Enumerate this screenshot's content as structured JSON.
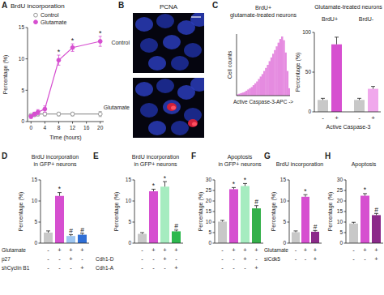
{
  "chart_data": [
    {
      "type": "line",
      "panel": "A",
      "title": "BrdU incorporation",
      "x_label": "Time (hours)",
      "y_label": "Percentage (%)",
      "x": [
        0,
        1,
        2,
        4,
        8,
        12,
        20
      ],
      "xlim": [
        -1,
        21
      ],
      "xticks": [
        0,
        4,
        8,
        12,
        16,
        20
      ],
      "ylim": [
        0,
        15
      ],
      "yticks": [
        0,
        5,
        10,
        15
      ],
      "legend": "upper left",
      "series": [
        {
          "name": "Control",
          "color": "#9a9a9a",
          "marker": "open-circle",
          "values": [
            1.0,
            1.1,
            1.2,
            1.2,
            1.2,
            1.2,
            1.2
          ],
          "errors": [
            0.2,
            0.3,
            0.3,
            0.3,
            0.3,
            0.3,
            0.4
          ]
        },
        {
          "name": "Glutamate",
          "color": "#d64fd0",
          "marker": "circle",
          "values": [
            0.8,
            1.2,
            1.5,
            2.0,
            9.8,
            11.8,
            12.8
          ],
          "errors": [
            0.3,
            0.3,
            0.4,
            0.5,
            0.8,
            0.6,
            0.8
          ],
          "annotations": [
            null,
            null,
            null,
            null,
            "*",
            "*",
            "*"
          ]
        }
      ]
    },
    {
      "type": "image",
      "panel": "B",
      "title": "PCNA",
      "labels": [
        "Control",
        "Glutamate"
      ]
    },
    {
      "type": "histogram",
      "panel": "C",
      "title": [
        "BrdU+",
        "glutamate-treated neurons"
      ],
      "x_label": "Active Caspase-3-APC ->",
      "y_label": "Cell counts",
      "bins": [
        0,
        1,
        2,
        3,
        4,
        5,
        6,
        7,
        8,
        9,
        10,
        11,
        12,
        13,
        14,
        15,
        16,
        17,
        18,
        19,
        20,
        21,
        22,
        23,
        24,
        25,
        26,
        27,
        28,
        29,
        30
      ],
      "counts": [
        2,
        3,
        4,
        5,
        6,
        8,
        10,
        12,
        14,
        17,
        20,
        23,
        27,
        31,
        35,
        40,
        45,
        50,
        56,
        62,
        68,
        74,
        80,
        86,
        92,
        96,
        90,
        70,
        40,
        12
      ],
      "xlim": [
        0,
        30
      ],
      "ylim": [
        0,
        100
      ],
      "tick_labels": false,
      "color": "#e58be0"
    },
    {
      "type": "bar",
      "title": "Glutamate-treated neurons",
      "x_label": "Active Caspase-3",
      "y_label": "Percentage (%)",
      "categories": [
        "-",
        "+"
      ],
      "ylim": [
        0,
        100
      ],
      "yticks": [
        0,
        50,
        100
      ],
      "series": [
        {
          "name": "BrdU+",
          "colors": [
            "#c8c8c8",
            "#d64fd0"
          ],
          "values": [
            15,
            85
          ],
          "errors": [
            2,
            9
          ]
        },
        {
          "name": "BrdU-",
          "colors": [
            "#c8c8c8",
            "#f0a8ec"
          ],
          "values": [
            15,
            29
          ],
          "errors": [
            2,
            3
          ]
        }
      ]
    },
    {
      "type": "bar",
      "panel": "D",
      "title": [
        "BrdU incorporation",
        "in GFP+ neurons"
      ],
      "y_label": "Percentage (%)",
      "ylim": [
        0,
        15
      ],
      "yticks": [
        0,
        5,
        10,
        15
      ],
      "values": [
        2.5,
        11.2,
        1.7,
        2.0
      ],
      "errors": [
        0.4,
        0.8,
        0.3,
        0.3
      ],
      "colors": [
        "#c8c8c8",
        "#d64fd0",
        "#9ec6f0",
        "#2f6fd6"
      ],
      "annotations": [
        null,
        "*",
        "#",
        "#"
      ],
      "conditions": [
        {
          "label": "Glutamate",
          "values": [
            "-",
            "+",
            "+",
            "+"
          ]
        },
        {
          "label": "p27",
          "values": [
            "-",
            "-",
            "+",
            "-"
          ]
        },
        {
          "label": "shCyclin B1",
          "values": [
            "-",
            "-",
            "-",
            "+"
          ]
        }
      ]
    },
    {
      "type": "bar",
      "panel": "E",
      "title": [
        "BrdU incorporation",
        "in GFP+ neurons"
      ],
      "y_label": "Percentage (%)",
      "ylim": [
        0,
        15
      ],
      "yticks": [
        0,
        5,
        10,
        15
      ],
      "values": [
        2.2,
        12.3,
        13.4,
        2.8
      ],
      "errors": [
        0.3,
        0.5,
        1.2,
        0.3
      ],
      "colors": [
        "#c8c8c8",
        "#d64fd0",
        "#a6ecc0",
        "#2db84e"
      ],
      "annotations": [
        null,
        "*",
        "*",
        "#"
      ],
      "conditions": [
        {
          "label": null,
          "values": [
            "-",
            "+",
            "+",
            "+"
          ]
        },
        {
          "label": "Cdh1-D",
          "values": [
            "-",
            "-",
            "+",
            "-"
          ]
        },
        {
          "label": "Cdh1-A",
          "values": [
            "-",
            "-",
            "-",
            "+"
          ]
        }
      ]
    },
    {
      "type": "bar",
      "panel": "F",
      "title": [
        "Apoptosis",
        "in GFP+ neurons"
      ],
      "y_label": "Percentage (%)",
      "ylim": [
        0,
        30
      ],
      "yticks": [
        0,
        5,
        10,
        15,
        20,
        25,
        30
      ],
      "values": [
        10.2,
        25.6,
        27.1,
        16.5
      ],
      "errors": [
        0.6,
        0.8,
        1.2,
        1.3
      ],
      "colors": [
        "#c8c8c8",
        "#d64fd0",
        "#a6ecc0",
        "#34b04a"
      ],
      "annotations": [
        null,
        "*",
        "*",
        "#"
      ],
      "conditions": [
        {
          "label": null,
          "values": [
            "-",
            "+",
            "+",
            "+"
          ]
        },
        {
          "label": null,
          "values": [
            "-",
            "-",
            "+",
            "-"
          ]
        },
        {
          "label": null,
          "values": [
            "-",
            "-",
            "-",
            "+"
          ]
        }
      ]
    },
    {
      "type": "bar",
      "panel": "G",
      "title": "BrdU incorporation",
      "y_label": "Percentage (%)",
      "ylim": [
        0,
        15
      ],
      "yticks": [
        0,
        5,
        10,
        15
      ],
      "values": [
        2.6,
        11.0,
        2.7
      ],
      "errors": [
        0.3,
        0.5,
        0.3
      ],
      "colors": [
        "#c8c8c8",
        "#d64fd0",
        "#8b2a8a"
      ],
      "annotations": [
        null,
        "*",
        "#"
      ],
      "conditions": [
        {
          "label": "Glutamate",
          "values": [
            "-",
            "+",
            "+"
          ]
        },
        {
          "label": "siCdk5",
          "values": [
            "-",
            "-",
            "+"
          ]
        }
      ]
    },
    {
      "type": "bar",
      "panel": "H",
      "title": "Apoptosis",
      "y_label": "Percentage (%)",
      "ylim": [
        0,
        30
      ],
      "yticks": [
        0,
        5,
        10,
        15,
        20,
        25,
        30
      ],
      "values": [
        9.3,
        22.5,
        13.3
      ],
      "errors": [
        0.6,
        1.0,
        0.8
      ],
      "colors": [
        "#c8c8c8",
        "#d64fd0",
        "#8b2a8a"
      ],
      "annotations": [
        null,
        "*",
        "#"
      ],
      "conditions": [
        {
          "label": null,
          "values": [
            "-",
            "+",
            "+"
          ]
        },
        {
          "label": null,
          "values": [
            "-",
            "-",
            "+"
          ]
        }
      ]
    }
  ]
}
